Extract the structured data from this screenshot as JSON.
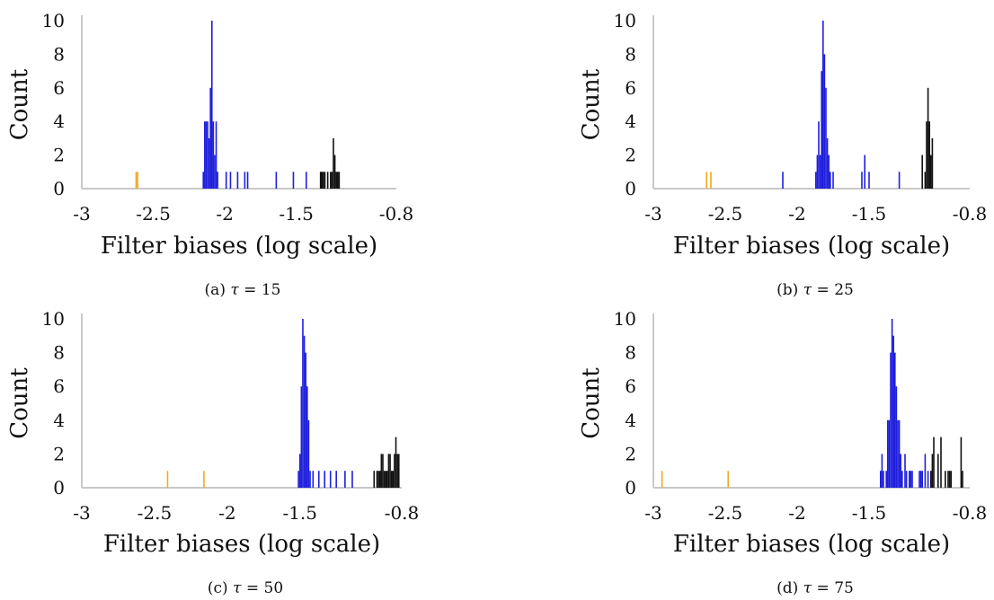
{
  "colors": {
    "axis": "#c8c8c8",
    "orange": "#f2a91e",
    "blue": "#1e1edc",
    "black": "#111111"
  },
  "chart_data": [
    {
      "type": "bar",
      "caption_prefix": "(a)",
      "caption_tau": "τ",
      "caption_value": "= 15",
      "xlabel": "Filter biases (log scale)",
      "ylabel": "Count",
      "xlim": [
        -3,
        -0.8
      ],
      "ylim": [
        0,
        10
      ],
      "xticks": [
        "-3",
        "-2.5",
        "-2",
        "-1.5",
        "-0.8"
      ],
      "yticks": [
        "0",
        "2",
        "4",
        "6",
        "8",
        "10"
      ],
      "grid": false,
      "series": [
        {
          "color": "orange",
          "x": [
            -2.62,
            -2.61
          ],
          "values": [
            1,
            1
          ]
        },
        {
          "color": "blue",
          "x": [
            -2.15,
            -2.14,
            -2.13,
            -2.12,
            -2.11,
            -2.1,
            -2.09,
            -2.08,
            -2.07,
            -2.06,
            -2.05,
            -1.99,
            -1.96,
            -1.91,
            -1.86,
            -1.84,
            -1.64,
            -1.52,
            -1.43
          ],
          "values": [
            1,
            4,
            4,
            4,
            3,
            6,
            10,
            4,
            2,
            4,
            1,
            1,
            1,
            1,
            1,
            1,
            1,
            1,
            1
          ]
        },
        {
          "color": "black",
          "x": [
            -1.33,
            -1.32,
            -1.31,
            -1.3,
            -1.28,
            -1.26,
            -1.25,
            -1.24,
            -1.23,
            -1.22,
            -1.21,
            -1.2
          ],
          "values": [
            1,
            1,
            1,
            1,
            1,
            1,
            1,
            3,
            2,
            1,
            1,
            1
          ]
        }
      ]
    },
    {
      "type": "bar",
      "caption_prefix": "(b)",
      "caption_tau": "τ",
      "caption_value": "= 25",
      "xlabel": "Filter biases (log scale)",
      "ylabel": "Count",
      "xlim": [
        -3,
        -0.8
      ],
      "ylim": [
        0,
        10
      ],
      "xticks": [
        "-3",
        "-2.5",
        "-2",
        "-1.5",
        "-0.8"
      ],
      "yticks": [
        "0",
        "2",
        "4",
        "6",
        "8",
        "10"
      ],
      "grid": false,
      "series": [
        {
          "color": "orange",
          "x": [
            -2.63,
            -2.6
          ],
          "values": [
            1,
            1
          ]
        },
        {
          "color": "blue",
          "x": [
            -2.1,
            -1.87,
            -1.86,
            -1.85,
            -1.84,
            -1.83,
            -1.82,
            -1.81,
            -1.8,
            -1.79,
            -1.78,
            -1.77,
            -1.75,
            -1.55,
            -1.53,
            -1.5,
            -1.29
          ],
          "values": [
            1,
            1,
            2,
            4,
            2,
            7,
            10,
            8,
            6,
            3,
            2,
            1,
            1,
            1,
            2,
            1,
            1
          ]
        },
        {
          "color": "black",
          "x": [
            -1.13,
            -1.11,
            -1.1,
            -1.09,
            -1.08,
            -1.07,
            -1.06
          ],
          "values": [
            2,
            1,
            4,
            6,
            4,
            2,
            3
          ]
        }
      ]
    },
    {
      "type": "bar",
      "caption_prefix": "(c)",
      "caption_tau": "τ",
      "caption_value": "= 50",
      "xlabel": "Filter biases (log scale)",
      "ylabel": "Count",
      "xlim": [
        -3,
        -0.8
      ],
      "ylim": [
        0,
        10
      ],
      "xticks": [
        "-3",
        "-2.5",
        "-2",
        "-1.5",
        "-0.8"
      ],
      "yticks": [
        "0",
        "2",
        "4",
        "6",
        "8",
        "10"
      ],
      "grid": false,
      "series": [
        {
          "color": "orange",
          "x": [
            -2.41,
            -2.16
          ],
          "values": [
            1,
            1
          ]
        },
        {
          "color": "blue",
          "x": [
            -1.51,
            -1.5,
            -1.49,
            -1.48,
            -1.47,
            -1.46,
            -1.45,
            -1.44,
            -1.43,
            -1.41,
            -1.37,
            -1.33,
            -1.29,
            -1.25,
            -1.19,
            -1.14
          ],
          "values": [
            1,
            2,
            6,
            10,
            9,
            8,
            6,
            4,
            1,
            1,
            1,
            1,
            1,
            1,
            1,
            1
          ]
        },
        {
          "color": "black",
          "x": [
            -0.99,
            -0.97,
            -0.96,
            -0.95,
            -0.94,
            -0.93,
            -0.92,
            -0.91,
            -0.9,
            -0.89,
            -0.88,
            -0.87,
            -0.86,
            -0.85,
            -0.84,
            -0.83,
            -0.82
          ],
          "values": [
            1,
            1,
            1,
            1,
            2,
            2,
            1,
            1,
            1,
            2,
            2,
            1,
            1,
            2,
            3,
            2,
            2
          ]
        }
      ]
    },
    {
      "type": "bar",
      "caption_prefix": "(d)",
      "caption_tau": "τ",
      "caption_value": "= 75",
      "xlabel": "Filter biases (log scale)",
      "ylabel": "Count",
      "xlim": [
        -3,
        -0.8
      ],
      "ylim": [
        0,
        10
      ],
      "xticks": [
        "-3",
        "-2.5",
        "-2",
        "-1.5",
        "-0.8"
      ],
      "yticks": [
        "0",
        "2",
        "4",
        "6",
        "8",
        "10"
      ],
      "grid": false,
      "series": [
        {
          "color": "orange",
          "x": [
            -2.94,
            -2.48
          ],
          "values": [
            1,
            1
          ]
        },
        {
          "color": "blue",
          "x": [
            -1.42,
            -1.41,
            -1.4,
            -1.38,
            -1.37,
            -1.36,
            -1.35,
            -1.34,
            -1.33,
            -1.32,
            -1.31,
            -1.3,
            -1.29,
            -1.28,
            -1.27,
            -1.25,
            -1.24,
            -1.22,
            -1.21,
            -1.2,
            -1.15,
            -1.14,
            -1.13,
            -1.11,
            -1.09
          ],
          "values": [
            1,
            2,
            1,
            1,
            4,
            4,
            8,
            10,
            9,
            8,
            6,
            4,
            4,
            2,
            1,
            2,
            1,
            1,
            1,
            1,
            1,
            1,
            1,
            2,
            1
          ]
        },
        {
          "color": "black",
          "x": [
            -1.07,
            -1.06,
            -1.05,
            -1.02,
            -1.0,
            -0.97,
            -0.95,
            -0.94,
            -0.93,
            -0.86,
            -0.85
          ],
          "values": [
            1,
            2,
            3,
            2,
            3,
            1,
            1,
            1,
            1,
            3,
            1
          ]
        }
      ]
    }
  ]
}
